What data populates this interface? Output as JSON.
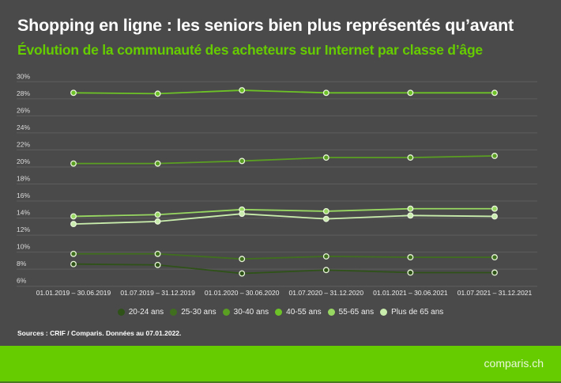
{
  "header": {
    "title": "Shopping en ligne : les seniors bien plus représentés qu’avant",
    "subtitle": "Évolution de la communauté des acheteurs sur Internet par classe d’âge"
  },
  "chart_data": {
    "type": "line",
    "title": "Shopping en ligne : les seniors bien plus représentés qu’avant",
    "subtitle": "Évolution de la communauté des acheteurs sur Internet par classe d’âge",
    "categories": [
      "01.01.2019 – 30.06.2019",
      "01.07.2019 – 31.12.2019",
      "01.01.2020 – 30.06.2020",
      "01.07.2020 – 31.12.2020",
      "01.01.2021 – 30.06.2021",
      "01.07.2021 – 31.12.2021"
    ],
    "ylim": [
      6,
      30
    ],
    "yticks": [
      "6%",
      "8%",
      "10%",
      "12%",
      "14%",
      "16%",
      "18%",
      "20%",
      "22%",
      "24%",
      "26%",
      "28%",
      "30%"
    ],
    "grid": true,
    "legend": "bottom",
    "series": [
      {
        "name": "20-24 ans",
        "color": "#2f5219",
        "values": [
          8.6,
          8.5,
          7.5,
          7.9,
          7.6,
          7.6
        ]
      },
      {
        "name": "25-30 ans",
        "color": "#40701e",
        "values": [
          9.8,
          9.8,
          9.2,
          9.5,
          9.4,
          9.4
        ]
      },
      {
        "name": "30-40 ans",
        "color": "#5a9e22",
        "values": [
          20.4,
          20.4,
          20.7,
          21.1,
          21.1,
          21.3
        ]
      },
      {
        "name": "40-55 ans",
        "color": "#6cc226",
        "values": [
          28.7,
          28.6,
          29.0,
          28.7,
          28.7,
          28.7
        ]
      },
      {
        "name": "55-65 ans",
        "color": "#98d862",
        "values": [
          14.2,
          14.4,
          15.0,
          14.8,
          15.1,
          15.1
        ]
      },
      {
        "name": "Plus de 65 ans",
        "color": "#c9edac",
        "values": [
          13.3,
          13.6,
          14.5,
          13.9,
          14.3,
          14.2
        ]
      }
    ]
  },
  "source": "Sources : CRIF / Comparis. Données au 07.01.2022.",
  "footer": {
    "logo": "comparis.ch",
    "color": "#66cc00"
  }
}
